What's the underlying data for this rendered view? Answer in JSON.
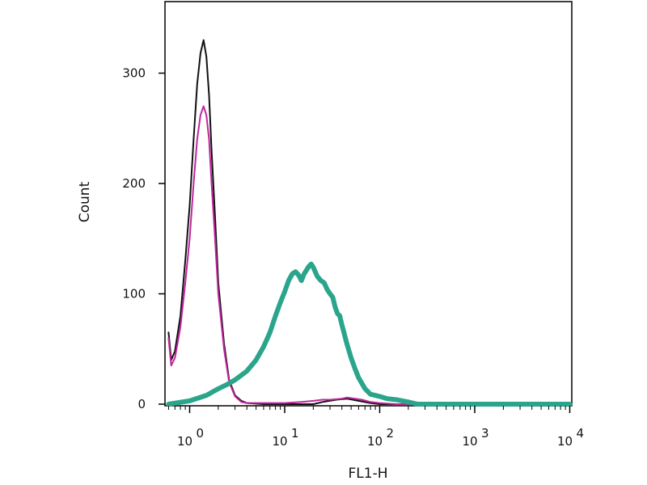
{
  "chart_data": {
    "type": "line",
    "title": "",
    "xlabel": "FL1-H",
    "ylabel": "Count",
    "x_scale": "log",
    "xlim": [
      0.6,
      10000
    ],
    "ylim": [
      0,
      360
    ],
    "grid": false,
    "x_ticks": [
      {
        "value": 1,
        "base": "10",
        "exp": "0"
      },
      {
        "value": 10,
        "base": "10",
        "exp": "1"
      },
      {
        "value": 100,
        "base": "10",
        "exp": "2"
      },
      {
        "value": 1000,
        "base": "10",
        "exp": "3"
      },
      {
        "value": 10000,
        "base": "10",
        "exp": "4"
      }
    ],
    "y_ticks": [
      {
        "value": 0,
        "label": "0"
      },
      {
        "value": 100,
        "label": "100"
      },
      {
        "value": 200,
        "label": "200"
      },
      {
        "value": 300,
        "label": "300"
      }
    ],
    "series": [
      {
        "color": "#111111",
        "width": 2,
        "points": [
          [
            0.6,
            65
          ],
          [
            0.64,
            40
          ],
          [
            0.7,
            48
          ],
          [
            0.8,
            80
          ],
          [
            0.9,
            130
          ],
          [
            1.0,
            180
          ],
          [
            1.1,
            240
          ],
          [
            1.2,
            290
          ],
          [
            1.3,
            318
          ],
          [
            1.4,
            330
          ],
          [
            1.5,
            315
          ],
          [
            1.6,
            280
          ],
          [
            1.7,
            230
          ],
          [
            1.85,
            170
          ],
          [
            2.0,
            110
          ],
          [
            2.3,
            55
          ],
          [
            2.6,
            22
          ],
          [
            3.0,
            8
          ],
          [
            3.5,
            3
          ],
          [
            4.0,
            1
          ],
          [
            6,
            0
          ],
          [
            20,
            0
          ],
          [
            25,
            2
          ],
          [
            35,
            4
          ],
          [
            45,
            5
          ],
          [
            60,
            3
          ],
          [
            80,
            1
          ],
          [
            100,
            0
          ],
          [
            10000,
            0
          ]
        ]
      },
      {
        "color": "#c0269c",
        "width": 2,
        "points": [
          [
            0.6,
            60
          ],
          [
            0.64,
            35
          ],
          [
            0.7,
            42
          ],
          [
            0.8,
            70
          ],
          [
            0.9,
            110
          ],
          [
            1.0,
            150
          ],
          [
            1.1,
            200
          ],
          [
            1.2,
            240
          ],
          [
            1.3,
            262
          ],
          [
            1.4,
            270
          ],
          [
            1.5,
            262
          ],
          [
            1.6,
            240
          ],
          [
            1.7,
            200
          ],
          [
            1.85,
            150
          ],
          [
            2.0,
            100
          ],
          [
            2.3,
            50
          ],
          [
            2.6,
            20
          ],
          [
            3.0,
            7
          ],
          [
            3.5,
            2
          ],
          [
            4.0,
            1
          ],
          [
            6,
            1
          ],
          [
            10,
            1
          ],
          [
            15,
            2
          ],
          [
            20,
            3
          ],
          [
            25,
            4
          ],
          [
            30,
            4
          ],
          [
            40,
            5
          ],
          [
            45,
            6
          ],
          [
            55,
            5
          ],
          [
            65,
            4
          ],
          [
            80,
            2
          ],
          [
            100,
            1
          ],
          [
            150,
            0
          ],
          [
            10000,
            0
          ]
        ]
      },
      {
        "color": "#2aa58c",
        "width": 6,
        "points": [
          [
            0.6,
            0
          ],
          [
            1.0,
            3
          ],
          [
            1.5,
            8
          ],
          [
            2.0,
            14
          ],
          [
            2.5,
            18
          ],
          [
            3.0,
            22
          ],
          [
            4.0,
            30
          ],
          [
            5.0,
            40
          ],
          [
            6.0,
            52
          ],
          [
            7.0,
            65
          ],
          [
            8.0,
            80
          ],
          [
            9.0,
            92
          ],
          [
            10,
            102
          ],
          [
            11,
            112
          ],
          [
            12,
            118
          ],
          [
            13,
            120
          ],
          [
            14,
            117
          ],
          [
            15,
            112
          ],
          [
            16,
            118
          ],
          [
            18,
            125
          ],
          [
            19,
            127
          ],
          [
            20,
            124
          ],
          [
            22,
            116
          ],
          [
            24,
            112
          ],
          [
            26,
            110
          ],
          [
            28,
            104
          ],
          [
            30,
            100
          ],
          [
            32,
            97
          ],
          [
            34,
            88
          ],
          [
            36,
            82
          ],
          [
            38,
            80
          ],
          [
            40,
            72
          ],
          [
            45,
            55
          ],
          [
            50,
            42
          ],
          [
            55,
            32
          ],
          [
            60,
            24
          ],
          [
            70,
            14
          ],
          [
            80,
            9
          ],
          [
            100,
            7
          ],
          [
            120,
            5
          ],
          [
            150,
            4
          ],
          [
            200,
            2
          ],
          [
            250,
            0
          ],
          [
            10000,
            0
          ]
        ]
      }
    ]
  }
}
